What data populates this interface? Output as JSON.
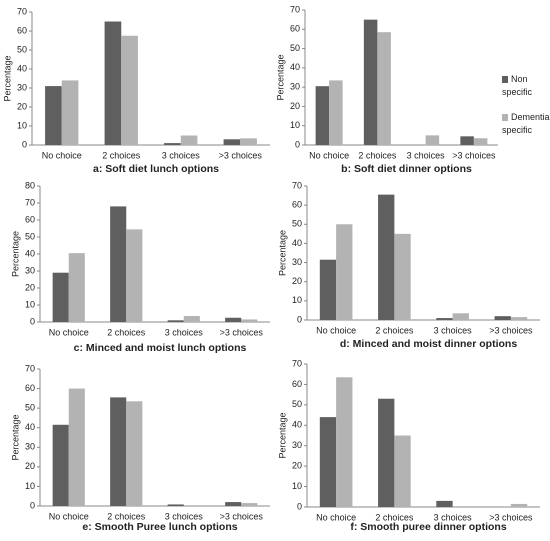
{
  "chart_data": [
    {
      "type": "bar",
      "title": "a: Soft diet lunch options",
      "y_label": "Percentage",
      "categories": [
        "No choice",
        "2 choices",
        "3 choices",
        ">3 choices"
      ],
      "series": [
        {
          "color": "#5f5f5f",
          "values": [
            31,
            65,
            1,
            3
          ]
        },
        {
          "color": "#b3b3b3",
          "values": [
            34,
            57.5,
            5,
            3.5
          ]
        }
      ],
      "ylim": [
        0,
        70
      ],
      "yticks": [
        0,
        10,
        20,
        30,
        40,
        50,
        60,
        70
      ]
    },
    {
      "type": "bar",
      "title": "b: Soft diet dinner options",
      "y_label": "Percentage",
      "categories": [
        "No choice",
        "2 choices",
        "3 choices",
        ">3 choices"
      ],
      "series": [
        {
          "name": "Non specific",
          "color": "#5f5f5f",
          "values": [
            30.5,
            65,
            0,
            4.5
          ]
        },
        {
          "name": "Dementia specific",
          "color": "#b3b3b3",
          "values": [
            33.5,
            58.5,
            5,
            3.5
          ]
        }
      ],
      "ylim": [
        0,
        70
      ],
      "yticks": [
        0,
        10,
        20,
        30,
        40,
        50,
        60,
        70
      ],
      "legend": "right"
    },
    {
      "type": "bar",
      "title": "c: Minced and moist lunch options",
      "y_label": "Percentage",
      "categories": [
        "No choice",
        "2 choices",
        "3 choices",
        ">3 choices"
      ],
      "series": [
        {
          "color": "#5f5f5f",
          "values": [
            29,
            68,
            1,
            2.5
          ]
        },
        {
          "color": "#b3b3b3",
          "values": [
            40.5,
            54.5,
            3.5,
            1.5
          ]
        }
      ],
      "ylim": [
        0,
        80
      ],
      "yticks": [
        0,
        10,
        20,
        30,
        40,
        50,
        60,
        70,
        80
      ]
    },
    {
      "type": "bar",
      "title": "d: Minced and moist dinner options",
      "y_label": "Percentage",
      "categories": [
        "No choice",
        "2 choices",
        "3 choices",
        ">3 choices"
      ],
      "series": [
        {
          "color": "#5f5f5f",
          "values": [
            31.5,
            65.5,
            1,
            2
          ]
        },
        {
          "color": "#b3b3b3",
          "values": [
            50,
            45,
            3.5,
            1.5
          ]
        }
      ],
      "ylim": [
        0,
        70
      ],
      "yticks": [
        0,
        10,
        20,
        30,
        40,
        50,
        60,
        70
      ]
    },
    {
      "type": "bar",
      "title": "e: Smooth Puree lunch options",
      "y_label": "Percentage",
      "categories": [
        "No choice",
        "2 choices",
        "3 choices",
        ">3 choices"
      ],
      "series": [
        {
          "color": "#5f5f5f",
          "values": [
            41.5,
            55.5,
            0.8,
            2
          ]
        },
        {
          "color": "#b3b3b3",
          "values": [
            60,
            53.5,
            0,
            1.5
          ]
        }
      ],
      "ylim": [
        0,
        70
      ],
      "yticks": [
        0,
        10,
        20,
        30,
        40,
        50,
        60,
        70
      ]
    },
    {
      "type": "bar",
      "title": "f: Smooth puree dinner options",
      "y_label": "Percentage",
      "categories": [
        "No choice",
        "2 choices",
        "3 choices",
        ">3 choices"
      ],
      "series": [
        {
          "color": "#5f5f5f",
          "values": [
            44,
            53,
            3,
            0
          ]
        },
        {
          "color": "#b3b3b3",
          "values": [
            63.5,
            35,
            0,
            1.5
          ]
        }
      ],
      "ylim": [
        0,
        70
      ],
      "yticks": [
        0,
        10,
        20,
        30,
        40,
        50,
        60,
        70
      ]
    }
  ]
}
